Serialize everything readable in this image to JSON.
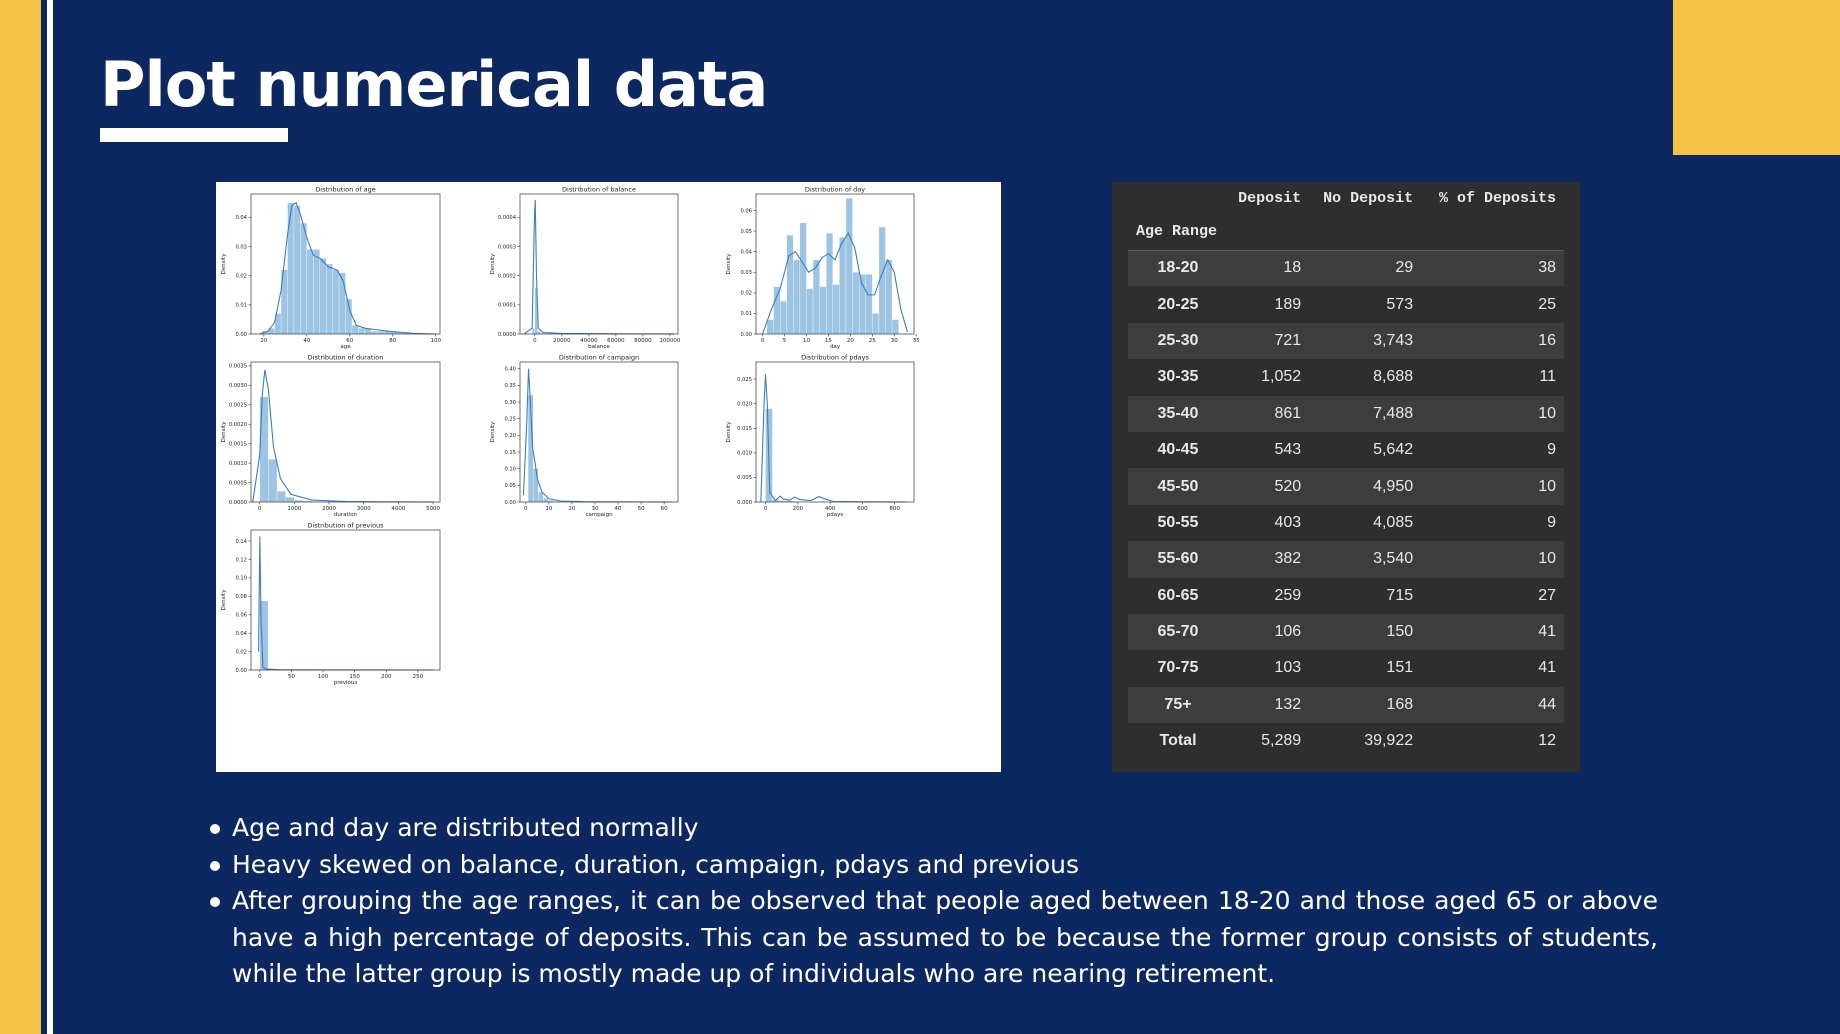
{
  "slide": {
    "title": "Plot numerical data"
  },
  "bullets": [
    "Age and day are distributed normally",
    "Heavy skewed on balance, duration, campaign, pdays and previous",
    "After grouping the age ranges, it can be observed that people aged between 18-20 and those aged 65 or above have a high percentage of deposits. This can be assumed to be because the former group consists of students, while the latter group is mostly made up of individuals who are nearing retirement."
  ],
  "table": {
    "columns": [
      "Deposit",
      "No Deposit",
      "% of Deposits"
    ],
    "index_name": "Age Range",
    "rows": [
      {
        "label": "18-20",
        "values": [
          "18",
          "29",
          "38"
        ]
      },
      {
        "label": "20-25",
        "values": [
          "189",
          "573",
          "25"
        ]
      },
      {
        "label": "25-30",
        "values": [
          "721",
          "3,743",
          "16"
        ]
      },
      {
        "label": "30-35",
        "values": [
          "1,052",
          "8,688",
          "11"
        ]
      },
      {
        "label": "35-40",
        "values": [
          "861",
          "7,488",
          "10"
        ]
      },
      {
        "label": "40-45",
        "values": [
          "543",
          "5,642",
          "9"
        ]
      },
      {
        "label": "45-50",
        "values": [
          "520",
          "4,950",
          "10"
        ]
      },
      {
        "label": "50-55",
        "values": [
          "403",
          "4,085",
          "9"
        ]
      },
      {
        "label": "55-60",
        "values": [
          "382",
          "3,540",
          "10"
        ]
      },
      {
        "label": "60-65",
        "values": [
          "259",
          "715",
          "27"
        ]
      },
      {
        "label": "65-70",
        "values": [
          "106",
          "150",
          "41"
        ]
      },
      {
        "label": "70-75",
        "values": [
          "103",
          "151",
          "41"
        ]
      },
      {
        "label": "75+",
        "values": [
          "132",
          "168",
          "44"
        ]
      },
      {
        "label": "Total",
        "values": [
          "5,289",
          "39,922",
          "12"
        ]
      }
    ]
  },
  "chart_data": [
    {
      "type": "histogram",
      "title": "Distribution of age",
      "xlabel": "age",
      "ylabel": "Density",
      "xlim": [
        14,
        102
      ],
      "ylim": [
        0,
        0.048
      ],
      "xticks": [
        "20",
        "40",
        "60",
        "80",
        "100"
      ],
      "yticks": [
        "0.00",
        "0.01",
        "0.02",
        "0.03",
        "0.04"
      ],
      "bins": [
        [
          19,
          22,
          0.001
        ],
        [
          22,
          25,
          0.002
        ],
        [
          25,
          28,
          0.007
        ],
        [
          28,
          31,
          0.022
        ],
        [
          31,
          34,
          0.045
        ],
        [
          34,
          37,
          0.044
        ],
        [
          37,
          40,
          0.038
        ],
        [
          40,
          43,
          0.029
        ],
        [
          43,
          46,
          0.029
        ],
        [
          46,
          49,
          0.026
        ],
        [
          49,
          52,
          0.024
        ],
        [
          52,
          55,
          0.022
        ],
        [
          55,
          58,
          0.021
        ],
        [
          58,
          61,
          0.012
        ],
        [
          61,
          64,
          0.003
        ],
        [
          64,
          67,
          0.002
        ],
        [
          67,
          70,
          0.002
        ],
        [
          70,
          73,
          0.001
        ],
        [
          73,
          76,
          0.001
        ],
        [
          76,
          79,
          0.001
        ],
        [
          79,
          82,
          0.001
        ],
        [
          82,
          85,
          0.0005
        ],
        [
          85,
          88,
          0.0003
        ]
      ],
      "kde": [
        [
          18,
          0
        ],
        [
          22,
          0.001
        ],
        [
          25,
          0.004
        ],
        [
          28,
          0.015
        ],
        [
          31,
          0.034
        ],
        [
          33,
          0.044
        ],
        [
          35,
          0.045
        ],
        [
          37,
          0.041
        ],
        [
          40,
          0.033
        ],
        [
          43,
          0.027
        ],
        [
          46,
          0.026
        ],
        [
          50,
          0.023
        ],
        [
          54,
          0.022
        ],
        [
          57,
          0.018
        ],
        [
          60,
          0.008
        ],
        [
          63,
          0.003
        ],
        [
          67,
          0.002
        ],
        [
          72,
          0.0015
        ],
        [
          80,
          0.0008
        ],
        [
          90,
          0.0002
        ],
        [
          100,
          0
        ]
      ]
    },
    {
      "type": "histogram",
      "title": "Distribution of balance",
      "xlabel": "balance",
      "ylabel": "Density",
      "xlim": [
        -11000,
        106000
      ],
      "ylim": [
        0,
        0.00048
      ],
      "xticks": [
        "0",
        "20000",
        "40000",
        "60000",
        "80000",
        "100000"
      ],
      "yticks": [
        "0.0000",
        "0.0001",
        "0.0002",
        "0.0003",
        "0.0004"
      ],
      "bins": [
        [
          -2000,
          0,
          2e-05
        ],
        [
          0,
          2000,
          0.00016
        ],
        [
          2000,
          4000,
          1e-05
        ],
        [
          4000,
          6000,
          3e-06
        ]
      ],
      "kde": [
        [
          -8000,
          0
        ],
        [
          -2000,
          2e-05
        ],
        [
          -300,
          0.0004
        ],
        [
          300,
          0.00046
        ],
        [
          1200,
          0.0002
        ],
        [
          2500,
          2e-05
        ],
        [
          6000,
          5e-06
        ],
        [
          20000,
          2e-06
        ],
        [
          60000,
          5e-07
        ],
        [
          103000,
          3e-07
        ]
      ]
    },
    {
      "type": "histogram",
      "title": "Distribution of day",
      "xlabel": "day",
      "ylabel": "Density",
      "xlim": [
        -1.5,
        34.5
      ],
      "ylim": [
        0,
        0.068
      ],
      "xticks": [
        "0",
        "5",
        "10",
        "15",
        "20",
        "25",
        "30",
        "35"
      ],
      "yticks": [
        "0.00",
        "0.01",
        "0.02",
        "0.03",
        "0.04",
        "0.05",
        "0.06"
      ],
      "bins": [
        [
          1,
          2.5,
          0.007
        ],
        [
          2.5,
          4,
          0.023
        ],
        [
          4,
          5.5,
          0.016
        ],
        [
          5.5,
          7,
          0.048
        ],
        [
          7,
          8.5,
          0.036
        ],
        [
          8.5,
          10,
          0.054
        ],
        [
          10,
          11.5,
          0.022
        ],
        [
          11.5,
          13,
          0.036
        ],
        [
          13,
          14.5,
          0.023
        ],
        [
          14.5,
          16,
          0.049
        ],
        [
          16,
          17.5,
          0.024
        ],
        [
          17.5,
          19,
          0.047
        ],
        [
          19,
          20.5,
          0.066
        ],
        [
          20.5,
          22,
          0.03
        ],
        [
          22,
          23.5,
          0.029
        ],
        [
          23.5,
          25,
          0.029
        ],
        [
          25,
          26.5,
          0.01
        ],
        [
          26.5,
          28,
          0.052
        ],
        [
          28,
          29.5,
          0.036
        ],
        [
          29.5,
          31,
          0.007
        ]
      ],
      "kde": [
        [
          0,
          0.0
        ],
        [
          2,
          0.012
        ],
        [
          4,
          0.022
        ],
        [
          6,
          0.038
        ],
        [
          7.5,
          0.04
        ],
        [
          9,
          0.035
        ],
        [
          10.5,
          0.03
        ],
        [
          12,
          0.032
        ],
        [
          13.5,
          0.037
        ],
        [
          15,
          0.039
        ],
        [
          16.5,
          0.036
        ],
        [
          18,
          0.044
        ],
        [
          19.5,
          0.049
        ],
        [
          21,
          0.042
        ],
        [
          22.5,
          0.025
        ],
        [
          24,
          0.019
        ],
        [
          25.5,
          0.019
        ],
        [
          27,
          0.028
        ],
        [
          28.5,
          0.036
        ],
        [
          30,
          0.03
        ],
        [
          31.5,
          0.012
        ],
        [
          33,
          0.001
        ]
      ]
    },
    {
      "type": "histogram",
      "title": "Distribution of duration",
      "xlabel": "duration",
      "ylabel": "Density",
      "xlim": [
        -250,
        5200
      ],
      "ylim": [
        0,
        0.0036
      ],
      "xticks": [
        "0",
        "1000",
        "2000",
        "3000",
        "4000",
        "5000"
      ],
      "yticks": [
        "0.0000",
        "0.0005",
        "0.0010",
        "0.0015",
        "0.0020",
        "0.0025",
        "0.0030",
        "0.0035"
      ],
      "bins": [
        [
          0,
          250,
          0.0027
        ],
        [
          250,
          500,
          0.0011
        ],
        [
          500,
          750,
          0.00028
        ],
        [
          750,
          1000,
          0.00012
        ],
        [
          1000,
          1250,
          5e-05
        ],
        [
          1250,
          1500,
          3e-05
        ],
        [
          1500,
          2000,
          1e-05
        ]
      ],
      "kde": [
        [
          -200,
          0
        ],
        [
          0,
          0.0012
        ],
        [
          80,
          0.0028
        ],
        [
          150,
          0.0034
        ],
        [
          250,
          0.0029
        ],
        [
          400,
          0.0014
        ],
        [
          600,
          0.0006
        ],
        [
          900,
          0.0002
        ],
        [
          1500,
          5e-05
        ],
        [
          2500,
          1e-05
        ],
        [
          5000,
          0
        ]
      ]
    },
    {
      "type": "histogram",
      "title": "Distribution of campaign",
      "xlabel": "campaign",
      "ylabel": "Density",
      "xlim": [
        -2.5,
        66
      ],
      "ylim": [
        0,
        0.42
      ],
      "xticks": [
        "0",
        "10",
        "20",
        "30",
        "40",
        "50",
        "60"
      ],
      "yticks": [
        "0.00",
        "0.05",
        "0.10",
        "0.15",
        "0.20",
        "0.25",
        "0.30",
        "0.35",
        "0.40"
      ],
      "bins": [
        [
          1,
          3.2,
          0.32
        ],
        [
          3.2,
          5.4,
          0.1
        ],
        [
          5.4,
          7.6,
          0.03
        ],
        [
          7.6,
          9.8,
          0.011
        ],
        [
          9.8,
          12,
          0.005
        ],
        [
          12,
          16,
          0.002
        ]
      ],
      "kde": [
        [
          -1,
          0.02
        ],
        [
          0.5,
          0.25
        ],
        [
          1.2,
          0.4
        ],
        [
          2,
          0.3
        ],
        [
          3,
          0.16
        ],
        [
          4,
          0.12
        ],
        [
          5,
          0.07
        ],
        [
          7,
          0.03
        ],
        [
          10,
          0.01
        ],
        [
          15,
          0.003
        ],
        [
          25,
          0.001
        ],
        [
          63,
          0
        ]
      ]
    },
    {
      "type": "histogram",
      "title": "Distribution of pdays",
      "xlabel": "pdays",
      "ylabel": "Density",
      "xlim": [
        -60,
        920
      ],
      "ylim": [
        0,
        0.0285
      ],
      "xticks": [
        "0",
        "200",
        "400",
        "600",
        "800"
      ],
      "yticks": [
        "0.000",
        "0.005",
        "0.010",
        "0.015",
        "0.020",
        "0.025"
      ],
      "bins": [
        [
          -1,
          42,
          0.019
        ],
        [
          42,
          85,
          0.0005
        ],
        [
          85,
          130,
          0.0003
        ],
        [
          130,
          175,
          0.0003
        ]
      ],
      "kde": [
        [
          -30,
          0
        ],
        [
          -10,
          0.02
        ],
        [
          -1,
          0.026
        ],
        [
          10,
          0.02
        ],
        [
          25,
          0.002
        ],
        [
          60,
          0.0003
        ],
        [
          90,
          0.0012
        ],
        [
          110,
          0.0006
        ],
        [
          150,
          0.0004
        ],
        [
          180,
          0.001
        ],
        [
          210,
          0.0005
        ],
        [
          280,
          0.0003
        ],
        [
          330,
          0.0011
        ],
        [
          370,
          0.0006
        ],
        [
          420,
          0.0001
        ],
        [
          600,
          5e-05
        ],
        [
          870,
          0
        ]
      ]
    },
    {
      "type": "histogram",
      "title": "Distribution of previous",
      "xlabel": "previous",
      "ylabel": "Density",
      "xlim": [
        -14,
        285
      ],
      "ylim": [
        0,
        0.152
      ],
      "xticks": [
        "0",
        "50",
        "100",
        "150",
        "200",
        "250"
      ],
      "yticks": [
        "0.00",
        "0.02",
        "0.04",
        "0.06",
        "0.08",
        "0.10",
        "0.12",
        "0.14"
      ],
      "bins": [
        [
          0,
          13,
          0.075
        ],
        [
          13,
          26,
          0.0012
        ]
      ],
      "kde": [
        [
          -2,
          0.02
        ],
        [
          0,
          0.145
        ],
        [
          2,
          0.05
        ],
        [
          5,
          0.003
        ],
        [
          10,
          0.001
        ],
        [
          30,
          0.0003
        ],
        [
          100,
          0.0001
        ],
        [
          275,
          0
        ]
      ]
    }
  ]
}
